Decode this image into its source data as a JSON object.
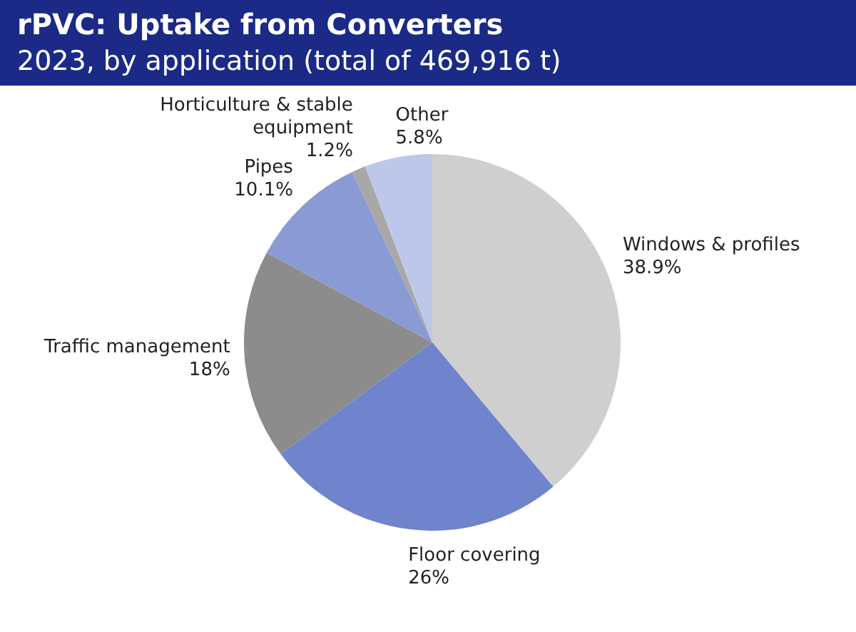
{
  "chart_data": {
    "type": "pie",
    "title": "rPVC: Uptake from Converters",
    "subtitle": "2023, by application (total of 469,916 t)",
    "categories": [
      "Windows & profiles",
      "Floor covering",
      "Traffic management",
      "Pipes",
      "Horticulture & stable equipment",
      "Other"
    ],
    "values": [
      38.9,
      26,
      18,
      10.1,
      1.2,
      5.8
    ],
    "colors": [
      "#cfcfcf",
      "#6f84cc",
      "#8c8c8c",
      "#8a9ad4",
      "#a8a8a8",
      "#bcc7ea"
    ],
    "value_labels": [
      "38.9%",
      "26%",
      "18%",
      "10.1%",
      "1.2%",
      "5.8%"
    ]
  }
}
